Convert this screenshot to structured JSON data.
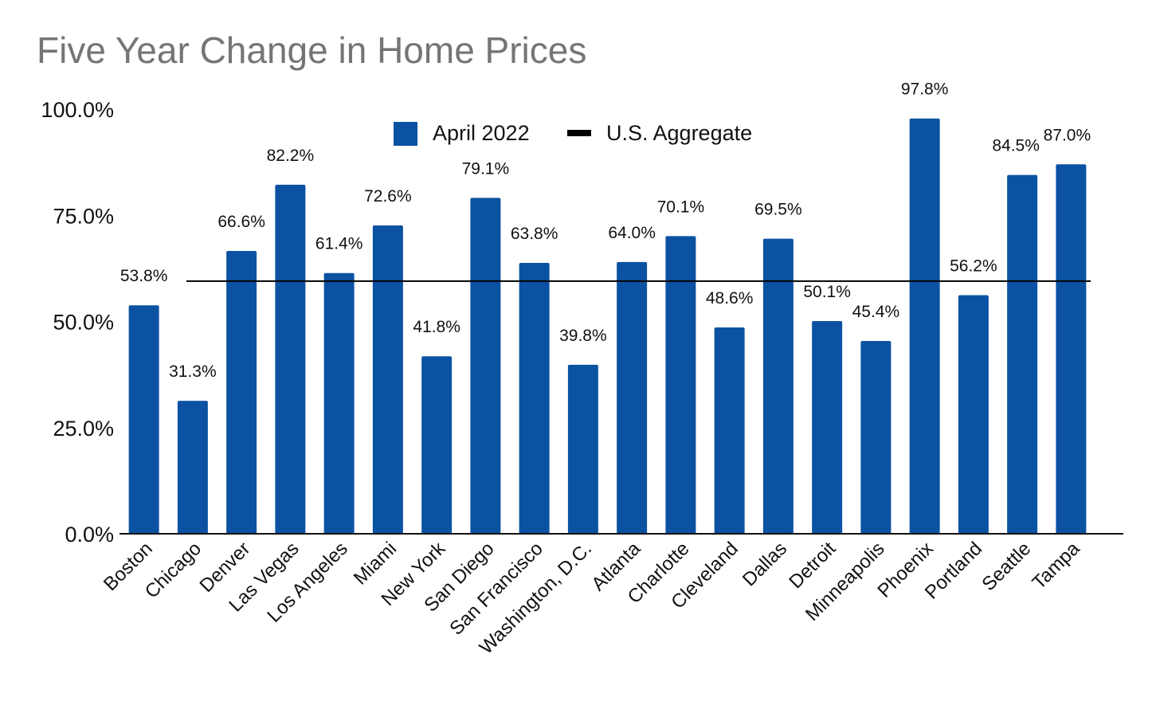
{
  "chart_data": {
    "type": "bar",
    "title": "Five Year Change in Home Prices",
    "xlabel": "",
    "ylabel": "",
    "ylim": [
      0,
      100
    ],
    "y_ticks": [
      "0.0%",
      "25.0%",
      "50.0%",
      "75.0%",
      "100.0%"
    ],
    "y_tick_values": [
      0,
      25,
      50,
      75,
      100
    ],
    "categories": [
      "Boston",
      "Chicago",
      "Denver",
      "Las Vegas",
      "Los Angeles",
      "Miami",
      "New York",
      "San Diego",
      "San Francisco",
      "Washington, D.C.",
      "Atlanta",
      "Charlotte",
      "Cleveland",
      "Dallas",
      "Detroit",
      "Minneapolis",
      "Phoenix",
      "Portland",
      "Seattle",
      "Tampa"
    ],
    "series": [
      {
        "name": "April 2022",
        "color": "#0b52a3",
        "values": [
          53.8,
          31.3,
          66.6,
          82.2,
          61.4,
          72.6,
          41.8,
          79.1,
          63.8,
          39.8,
          64.0,
          70.1,
          48.6,
          69.5,
          50.1,
          45.4,
          97.8,
          56.2,
          84.5,
          87.0
        ],
        "data_labels": [
          "53.8%",
          "31.3%",
          "66.6%",
          "82.2%",
          "61.4%",
          "72.6%",
          "41.8%",
          "79.1%",
          "63.8%",
          "39.8%",
          "64.0%",
          "70.1%",
          "48.6%",
          "69.5%",
          "50.1%",
          "45.4%",
          "97.8%",
          "56.2%",
          "84.5%",
          "87.0%"
        ]
      }
    ],
    "reference_line": {
      "name": "U.S. Aggregate",
      "value": 59.5,
      "color": "#000000"
    },
    "legend_position": "top-center",
    "grid": false
  }
}
